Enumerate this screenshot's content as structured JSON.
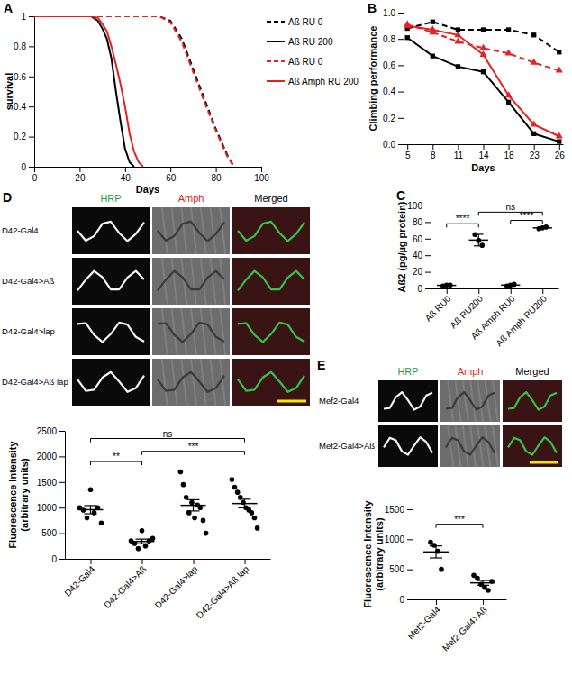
{
  "chart_data": [
    {
      "type": "line",
      "title": "A",
      "x_label": "Days",
      "y_label": "survival",
      "x": [
        0,
        25,
        28,
        30,
        32,
        34,
        36,
        38,
        40,
        42,
        44,
        46,
        48,
        55,
        60,
        65,
        70,
        75,
        80,
        85,
        88
      ],
      "xlim": [
        0,
        100
      ],
      "xticks": [
        0,
        20,
        40,
        60,
        80,
        100
      ],
      "ylim": [
        0,
        1
      ],
      "yticks": [
        0,
        0.2,
        0.4,
        0.6,
        0.8,
        1
      ],
      "legend": "right",
      "series": [
        {
          "name": "Aß RU 0",
          "color": "#000000",
          "line_style": "dashed",
          "values": [
            1,
            1,
            1,
            1,
            1,
            1,
            1,
            1,
            1,
            1,
            1,
            1,
            1,
            1,
            0.97,
            0.85,
            0.65,
            0.45,
            0.25,
            0.08,
            0
          ]
        },
        {
          "name": "Aß RU 200",
          "color": "#000000",
          "line_style": "solid",
          "values": [
            1,
            1,
            0.97,
            0.92,
            0.85,
            0.72,
            0.5,
            0.3,
            0.12,
            0.03,
            0,
            null,
            null,
            null,
            null,
            null,
            null,
            null,
            null,
            null,
            null
          ]
        },
        {
          "name": "Aß RU 0",
          "color": "#e8201f",
          "line_style": "dashed",
          "values": [
            1,
            1,
            1,
            1,
            1,
            1,
            1,
            1,
            1,
            1,
            1,
            1,
            1,
            1,
            0.96,
            0.83,
            0.63,
            0.43,
            0.24,
            0.07,
            0
          ]
        },
        {
          "name": "Aß Amph RU 200",
          "color": "#e8201f",
          "line_style": "solid",
          "values": [
            1,
            1,
            0.99,
            0.95,
            0.9,
            0.8,
            0.68,
            0.55,
            0.4,
            0.22,
            0.1,
            0.03,
            0,
            null,
            null,
            null,
            null,
            null,
            null,
            null,
            null
          ]
        }
      ]
    },
    {
      "type": "line",
      "title": "B",
      "x_label": "Days",
      "y_label": "Climbing performance",
      "categories": [
        "5",
        "8",
        "11",
        "14",
        "18",
        "23",
        "26"
      ],
      "ylim": [
        0,
        1
      ],
      "yticks": [
        {
          "value": 0,
          "label": "0.0"
        },
        0.2,
        0.4,
        0.6,
        0.8,
        {
          "value": 1,
          "label": "1.0"
        }
      ],
      "series": [
        {
          "color": "#000000",
          "line_style": "dashed",
          "marker": "square",
          "values": [
            0.88,
            0.93,
            0.87,
            0.87,
            0.87,
            0.83,
            0.7
          ]
        },
        {
          "color": "#000000",
          "line_style": "solid",
          "marker": "square",
          "values": [
            0.81,
            0.67,
            0.59,
            0.55,
            0.32,
            0.08,
            0.02
          ]
        },
        {
          "color": "#e8201f",
          "line_style": "dashed",
          "marker": "triangle",
          "values": [
            0.91,
            0.85,
            0.78,
            0.73,
            0.69,
            0.62,
            0.56
          ]
        },
        {
          "color": "#e8201f",
          "line_style": "solid",
          "marker": "triangle",
          "values": [
            0.9,
            0.87,
            0.83,
            0.68,
            0.37,
            0.15,
            0.06
          ]
        }
      ]
    },
    {
      "type": "scatter",
      "title": "C",
      "y_label": "Aß2 (pg/µg protein)",
      "categories": [
        "Aß RU0",
        "Aß RU200",
        "Aß Amph RU0",
        "Aß Amph RU200"
      ],
      "points": [
        [
          3,
          4,
          4
        ],
        [
          65,
          58,
          52
        ],
        [
          3,
          4,
          5
        ],
        [
          72,
          73,
          74
        ]
      ],
      "values": [
        3.7,
        58.3,
        4,
        73
      ],
      "errors": [
        0.3,
        7,
        0.6,
        0.6
      ],
      "color": "#000000",
      "ylim": [
        0,
        100
      ],
      "yticks": [
        0,
        20,
        40,
        60,
        80,
        100
      ],
      "annotations": [
        {
          "text": "****",
          "between": [
            0,
            1
          ],
          "y": 78
        },
        {
          "text": "ns",
          "between": [
            1,
            3
          ],
          "y": 92
        },
        {
          "text": "****",
          "between": [
            2,
            3
          ],
          "y": 82
        }
      ]
    },
    {
      "type": "scatter",
      "y_label": [
        "Fluorescence Intensity",
        "(arbitrary units)"
      ],
      "categories": [
        "D42-Gal4",
        "D42-Gal4>Aß",
        "D42-Gal4>lap",
        "D42-Gal4>Aß lap"
      ],
      "points": [
        [
          1000,
          950,
          800,
          1350,
          900,
          1000,
          700
        ],
        [
          350,
          300,
          200,
          550,
          250,
          350,
          400
        ],
        [
          1700,
          1450,
          1200,
          900,
          1100,
          800,
          1050,
          1000,
          750,
          500
        ],
        [
          1550,
          1400,
          1300,
          1200,
          1100,
          1000,
          950,
          900,
          800,
          600
        ]
      ],
      "values": [
        960,
        340,
        1045,
        1080
      ],
      "errors": [
        80,
        45,
        110,
        85
      ],
      "color": "#000000",
      "ylim": [
        0,
        2500
      ],
      "yticks": [
        0,
        500,
        1000,
        1500,
        2000,
        2500
      ],
      "annotations": [
        {
          "text": "**",
          "between": [
            0,
            1
          ],
          "y": 1900
        },
        {
          "text": "***",
          "between": [
            1,
            3
          ],
          "y": 2100
        },
        {
          "text": "ns",
          "between": [
            0,
            3
          ],
          "y": 2350
        }
      ]
    },
    {
      "type": "scatter",
      "y_label": [
        "Fluorescence Intensity",
        "(arbitrary units)"
      ],
      "categories": [
        "Mef2-Gal4",
        "Mef2-Gal4>Aß"
      ],
      "points": [
        [
          950,
          900,
          800,
          500
        ],
        [
          400,
          350,
          250,
          200,
          150,
          300
        ]
      ],
      "values": [
        790,
        275
      ],
      "errors": [
        100,
        40
      ],
      "color": "#000000",
      "ylim": [
        0,
        1500
      ],
      "yticks": [
        0,
        500,
        1000,
        1500
      ],
      "annotations": [
        {
          "text": "***",
          "between": [
            0,
            1
          ],
          "y": 1250
        }
      ]
    }
  ],
  "image_panels": [
    {
      "letter": "D",
      "columns": [
        "HRP",
        "Amph",
        "Merged"
      ],
      "rows": [
        "D42-Gal4",
        "D42-Gal4>Aß",
        "D42-Gal4>lap",
        "D42-Gal4>Aß lap"
      ]
    },
    {
      "letter": "E",
      "columns": [
        "HRP",
        "Amph",
        "Merged"
      ],
      "rows": [
        "Mef2-Gal4",
        "Mef2-Gal4>Aß"
      ]
    }
  ]
}
